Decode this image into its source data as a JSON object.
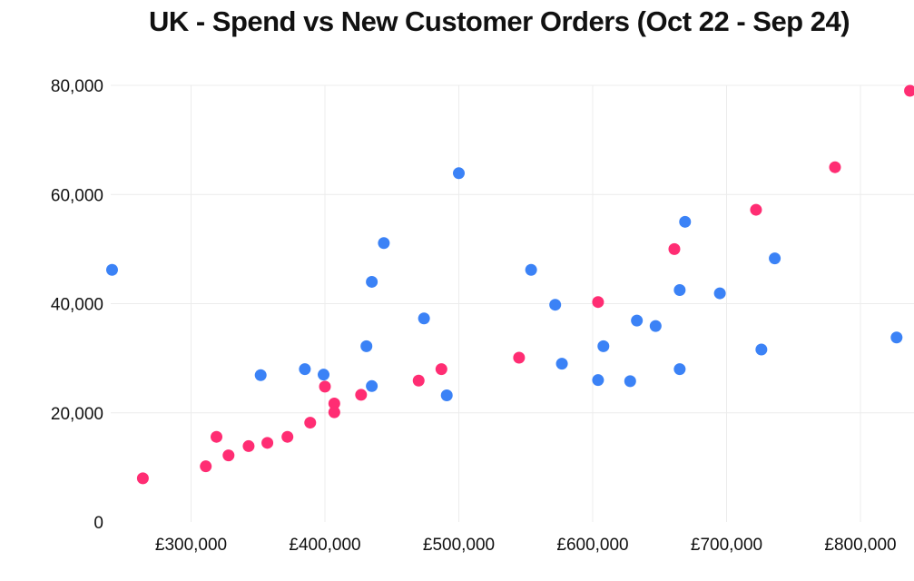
{
  "chart_data": {
    "type": "scatter",
    "title": "UK - Spend vs New Customer Orders (Oct 22 - Sep 24)",
    "xlabel": "",
    "ylabel": "",
    "xlim": [
      240000,
      840000
    ],
    "ylim": [
      0,
      80000
    ],
    "x_ticks": [
      300000,
      400000,
      500000,
      600000,
      700000,
      800000
    ],
    "x_tick_labels": [
      "£300,000",
      "£400,000",
      "£500,000",
      "£600,000",
      "£700,000",
      "£800,000"
    ],
    "y_ticks": [
      0,
      20000,
      40000,
      60000,
      80000
    ],
    "y_tick_labels": [
      "0",
      "20,000",
      "40,000",
      "60,000",
      "80,000"
    ],
    "grid": true,
    "legend": "none",
    "series": [
      {
        "color": "#ff2d73",
        "points": [
          [
            264000,
            8000
          ],
          [
            311000,
            10200
          ],
          [
            319000,
            15600
          ],
          [
            328000,
            12200
          ],
          [
            343000,
            13900
          ],
          [
            357000,
            14500
          ],
          [
            372000,
            15600
          ],
          [
            389000,
            18200
          ],
          [
            400000,
            24800
          ],
          [
            407000,
            21700
          ],
          [
            407000,
            20100
          ],
          [
            427000,
            23300
          ],
          [
            470000,
            25900
          ],
          [
            487000,
            28000
          ],
          [
            545000,
            30100
          ],
          [
            604000,
            40300
          ],
          [
            661000,
            50000
          ],
          [
            722000,
            57200
          ],
          [
            781000,
            65000
          ],
          [
            837000,
            79000
          ]
        ]
      },
      {
        "color": "#3b82f6",
        "points": [
          [
            241000,
            46200
          ],
          [
            352000,
            26900
          ],
          [
            385000,
            28000
          ],
          [
            399000,
            27000
          ],
          [
            431000,
            32200
          ],
          [
            435000,
            44000
          ],
          [
            435000,
            24900
          ],
          [
            444000,
            51100
          ],
          [
            474000,
            37300
          ],
          [
            491000,
            23200
          ],
          [
            500000,
            63900
          ],
          [
            554000,
            46200
          ],
          [
            572000,
            39800
          ],
          [
            577000,
            29000
          ],
          [
            604000,
            26000
          ],
          [
            608000,
            32200
          ],
          [
            628000,
            25800
          ],
          [
            633000,
            36900
          ],
          [
            647000,
            35900
          ],
          [
            665000,
            42500
          ],
          [
            665000,
            28000
          ],
          [
            669000,
            55000
          ],
          [
            695000,
            41900
          ],
          [
            726000,
            31600
          ],
          [
            736000,
            48300
          ],
          [
            827000,
            33800
          ]
        ]
      }
    ]
  }
}
